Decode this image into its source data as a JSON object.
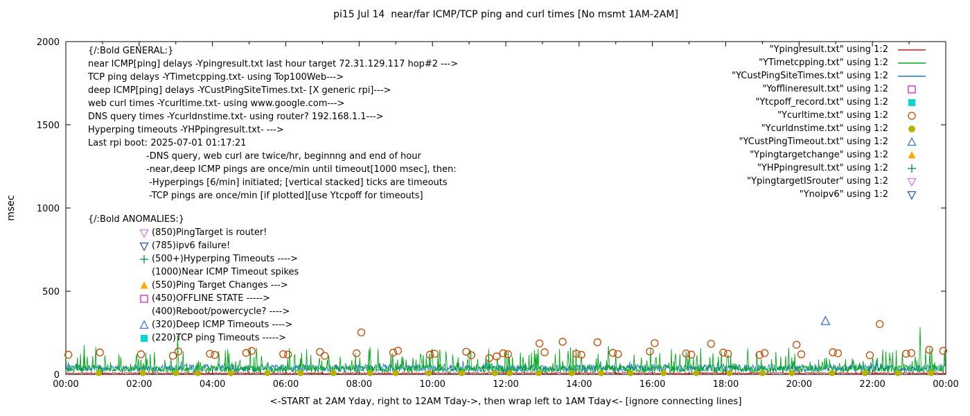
{
  "title": "pi15 Jul 14  near/far ICMP/TCP ping and curl times [No msmt 1AM-2AM]",
  "ylabel": "msec",
  "xcaption": "<-START at 2AM Yday, right to 12AM Tday->, then wrap left to 1AM Tday<- [ignore connecting lines]",
  "legend": {
    "items": [
      {
        "label": "\"Ypingresult.txt\" using 1:2",
        "marker": "line",
        "color": "#e01010"
      },
      {
        "label": "\"YTimetcpping.txt\" using 1:2",
        "marker": "line",
        "color": "#00a818"
      },
      {
        "label": "\"YCustPingSiteTimes.txt\" using 1:2",
        "marker": "line",
        "color": "#1878c8"
      },
      {
        "label": "\"Yofflineresult.txt\" using 1:2",
        "marker": "square-open",
        "color": "#d020d0"
      },
      {
        "label": "\"Ytcpoff_record.txt\" using 1:2",
        "marker": "square-filled",
        "color": "#00d8d8"
      },
      {
        "label": "\"Ycurltime.txt\" using 1:2",
        "marker": "circle-open",
        "color": "#c04800"
      },
      {
        "label": "\"Ycurldnstime.txt\" using 1:2",
        "marker": "circle-filled",
        "color": "#b4b400"
      },
      {
        "label": "\"YCustPingTimeout.txt\" using 1:2",
        "marker": "triangle-up-open",
        "color": "#3d6fd7"
      },
      {
        "label": "\"Ypingtargetchange\" using 1:2",
        "marker": "triangle-up-filled",
        "color": "#ffa800"
      },
      {
        "label": "\"YHPpingresult.txt\" using 1:2",
        "marker": "plus",
        "color": "#008a50"
      },
      {
        "label": "\"YpingtargetISrouter\" using 1:2",
        "marker": "triangle-down-open",
        "color": "#c878f8"
      },
      {
        "label": "\"Ynoipv6\" using 1:2",
        "marker": "triangle-down-open",
        "color": "#2a50b4"
      }
    ]
  },
  "annotations": {
    "general_header": "{/:Bold GENERAL:}",
    "general_lines": [
      "near ICMP[ping] delays -Ypingresult.txt last hour target 72.31.129.117 hop#2 --->",
      "TCP ping delays -YTimetcpping.txt- using Top100Web--->",
      "deep ICMP[ping] delays -YCustPingSiteTimes.txt- [X generic rpi]--->",
      "web curl times -Ycurltime.txt- using www.google.com--->",
      "DNS query times -Ycurldnstime.txt- using router? 192.168.1.1--->",
      "Hyperping timeouts -YHPpingresult.txt- --->",
      "Last rpi boot: 2025-07-01 01:17:21"
    ],
    "notes_lines": [
      "-DNS query, web curl are twice/hr, beginnng and end of hour",
      "-near,deep ICMP pings are once/min until timeout[1000 msec], then:",
      " -Hyperpings [6/min] initiated; [vertical stacked] ticks are timeouts",
      " -TCP pings are once/min [if plotted][use Ytcpoff for timeouts]"
    ],
    "anomalies_header": "{/:Bold ANOMALIES:}",
    "anomalies": [
      {
        "marker": "triangle-down-open",
        "color": "#c878f8",
        "text": "(850)PingTarget is router!"
      },
      {
        "marker": "triangle-down-open",
        "color": "#2a50b4",
        "text": "(785)ipv6 failure!"
      },
      {
        "marker": "plus",
        "color": "#008a50",
        "text": "(500+)Hyperping Timeouts ---->"
      },
      {
        "marker": "none",
        "color": "",
        "text": "(1000)Near ICMP Timeout spikes"
      },
      {
        "marker": "triangle-up-filled",
        "color": "#ffa800",
        "text": "(550)Ping Target Changes --->"
      },
      {
        "marker": "square-open",
        "color": "#d020d0",
        "text": "(450)OFFLINE STATE ----->"
      },
      {
        "marker": "none",
        "color": "",
        "text": "(400)Reboot/powercycle? ---->"
      },
      {
        "marker": "triangle-up-open",
        "color": "#3d6fd7",
        "text": "(320)Deep ICMP Timeouts ---->"
      },
      {
        "marker": "square-filled",
        "color": "#00d8d8",
        "text": "(220)TCP ping Timeouts ----->"
      }
    ]
  },
  "chart_data": {
    "type": "line",
    "title": "pi15 Jul 14  near/far ICMP/TCP ping and curl times [No msmt 1AM-2AM]",
    "xlabel": "<-START at 2AM Yday, right to 12AM Tday->, then wrap left to 1AM Tday<- [ignore connecting lines]",
    "ylabel": "msec",
    "xlim": [
      0,
      24
    ],
    "ylim": [
      0,
      2000
    ],
    "yticks": [
      0,
      500,
      1000,
      1500,
      2000
    ],
    "xtick_hours": [
      0,
      2,
      4,
      6,
      8,
      10,
      12,
      14,
      16,
      18,
      20,
      22,
      24
    ],
    "xtick_labels": [
      "00:00",
      "02:00",
      "04:00",
      "06:00",
      "08:00",
      "10:00",
      "12:00",
      "14:00",
      "16:00",
      "18:00",
      "20:00",
      "22:00",
      "00:00"
    ],
    "minor_xtick_every_hours": 1,
    "grid": false,
    "legend_position": "top-right",
    "series": [
      {
        "name": "Ypingresult.txt",
        "legend_label": "\"Ypingresult.txt\" using 1:2",
        "color": "#e01010",
        "style": "noise-line",
        "base": 2,
        "amp": 10,
        "spike_prob": 0,
        "spike_amp": 0,
        "points_per_hour": 60,
        "seed": 11,
        "spikes": []
      },
      {
        "name": "YTimetcpping.txt",
        "legend_label": "\"YTimetcpping.txt\" using 1:2",
        "color": "#00a818",
        "style": "noise-line",
        "base": 8,
        "amp": 45,
        "spike_prob": 0.18,
        "spike_amp": 120,
        "points_per_hour": 60,
        "seed": 7,
        "spikes": [
          [
            0.5,
            175
          ],
          [
            3.05,
            235
          ],
          [
            5.2,
            160
          ],
          [
            8.3,
            165
          ],
          [
            10.2,
            150
          ],
          [
            14.8,
            170
          ],
          [
            18.6,
            155
          ],
          [
            23.3,
            285
          ]
        ]
      },
      {
        "name": "YCustPingSiteTimes.txt",
        "legend_label": "\"YCustPingSiteTimes.txt\" using 1:2",
        "color": "#1878c8",
        "style": "noise-line",
        "base": 15,
        "amp": 45,
        "spike_prob": 0.05,
        "spike_amp": 30,
        "points_per_hour": 60,
        "seed": 23,
        "spikes": []
      }
    ],
    "scatter": [
      {
        "name": "Ycurltime.txt",
        "legend_label": "\"Ycurltime.txt\" using 1:2",
        "marker": "circle-open",
        "color": "#c04800",
        "size": 5,
        "points": [
          [
            0.07,
            118
          ],
          [
            0.93,
            132
          ],
          [
            2.05,
            121
          ],
          [
            2.92,
            112
          ],
          [
            3.07,
            138
          ],
          [
            3.93,
            124
          ],
          [
            4.06,
            117
          ],
          [
            4.92,
            129
          ],
          [
            5.07,
            141
          ],
          [
            5.93,
            122
          ],
          [
            6.06,
            119
          ],
          [
            6.93,
            135
          ],
          [
            7.06,
            112
          ],
          [
            7.93,
            127
          ],
          [
            8.06,
            252
          ],
          [
            8.93,
            131
          ],
          [
            9.06,
            142
          ],
          [
            9.93,
            118
          ],
          [
            10.06,
            124
          ],
          [
            10.92,
            136
          ],
          [
            11.06,
            115
          ],
          [
            11.55,
            98
          ],
          [
            11.75,
            108
          ],
          [
            11.93,
            127
          ],
          [
            12.06,
            121
          ],
          [
            12.92,
            186
          ],
          [
            13.06,
            133
          ],
          [
            13.55,
            196
          ],
          [
            13.93,
            124
          ],
          [
            14.06,
            118
          ],
          [
            14.5,
            193
          ],
          [
            14.92,
            129
          ],
          [
            15.06,
            122
          ],
          [
            15.93,
            138
          ],
          [
            16.06,
            188
          ],
          [
            16.92,
            126
          ],
          [
            17.06,
            119
          ],
          [
            17.6,
            184
          ],
          [
            17.93,
            131
          ],
          [
            18.06,
            124
          ],
          [
            18.92,
            117
          ],
          [
            19.06,
            128
          ],
          [
            19.93,
            178
          ],
          [
            20.06,
            121
          ],
          [
            20.92,
            133
          ],
          [
            21.06,
            127
          ],
          [
            21.93,
            115
          ],
          [
            22.2,
            302
          ],
          [
            22.92,
            124
          ],
          [
            23.06,
            128
          ],
          [
            23.55,
            148
          ],
          [
            23.93,
            141
          ]
        ]
      },
      {
        "name": "Ycurldnstime.txt",
        "legend_label": "\"Ycurldnstime.txt\" using 1:2",
        "marker": "circle-filled",
        "color": "#b4b400",
        "size": 4.5,
        "points": [
          [
            0.9,
            8
          ],
          [
            2.1,
            8
          ],
          [
            3.0,
            8
          ],
          [
            3.6,
            8
          ],
          [
            4.5,
            8
          ],
          [
            5.5,
            8
          ],
          [
            6.4,
            8
          ],
          [
            7.3,
            8
          ],
          [
            8.3,
            8
          ],
          [
            9.0,
            8
          ],
          [
            9.9,
            8
          ],
          [
            10.8,
            8
          ],
          [
            11.7,
            8
          ],
          [
            12.1,
            8
          ],
          [
            12.9,
            8
          ],
          [
            13.8,
            8
          ],
          [
            14.6,
            8
          ],
          [
            15.4,
            8
          ],
          [
            16.3,
            8
          ],
          [
            17.2,
            8
          ],
          [
            18.1,
            8
          ],
          [
            19.0,
            8
          ],
          [
            19.8,
            8
          ],
          [
            20.9,
            8
          ],
          [
            21.8,
            8
          ],
          [
            22.7,
            8
          ],
          [
            23.6,
            8
          ]
        ]
      },
      {
        "name": "YCustPingTimeout.txt",
        "legend_label": "\"YCustPingTimeout.txt\" using 1:2",
        "marker": "triangle-up-open",
        "color": "#3d6fd7",
        "size": 5.5,
        "points": [
          [
            20.72,
            320
          ]
        ]
      }
    ]
  }
}
